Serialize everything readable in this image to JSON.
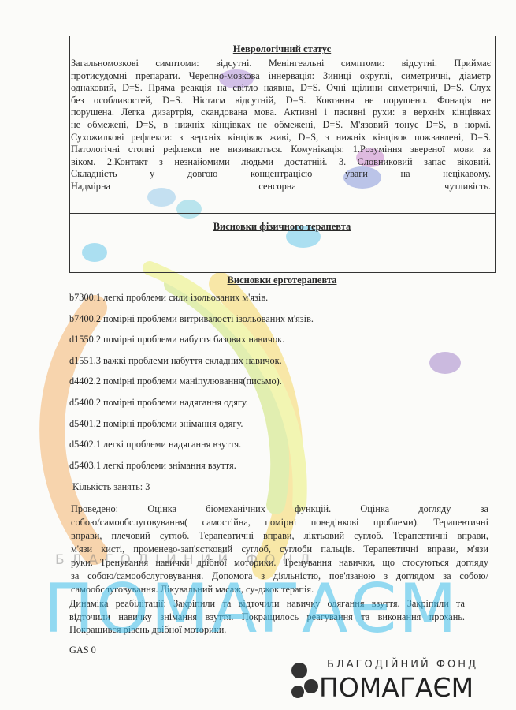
{
  "neuro": {
    "title": "Неврологічний статус",
    "lines": [
      "Загальномозкові симптоми: відсутні. Менінгеальні симптоми: відсутні. Приймає",
      "протисудомні препарати. Черепно-мозкова іннервація: Зиниці округлі, симетричні, діаметр",
      "однаковий, D=S. Пряма реакція на світло наявна, D=S. Очні щілини симетричні, D=S. Слух",
      "без особливостей, D=S. Ністагм відсутній, D=S. Ковтання не порушено. Фонація не",
      "порушена. Легка дизартрія, скандована мова. Активні і пасивні рухи: в верхніх кінцівках",
      "не обмежені, D=S, в нижніх кінцівках не обмежені, D=S. М'язовий тонус D=S, в нормі.",
      "Сухожилкові рефлекси: з верхніх кінцівок живі, D=S, з нижніх кінцівок пожвавлені, D=S.",
      "Патологічні стопні рефлекси не визиваються. Комунікація: 1.Розуміння звереної мови за",
      "віком. 2.Контакт з незнайомими людьми достатній. 3. Словниковий запас віковий.",
      "Складність у довгою концентрацією уваги на нецікавому.",
      "Надмірна сенсорна чутливість."
    ]
  },
  "physio": {
    "title": "Висновки фізичного терапевта"
  },
  "ergo": {
    "title": "Висновки ерготерапевта",
    "items": [
      "b7300.1 легкі проблеми сили ізольованих м'язів.",
      "b7400.2 помірні проблеми витривалості ізольованих м'язів.",
      "d1550.2 помірні проблеми набуття базових навичок.",
      "d1551.3 важкі проблеми набуття складних навичок.",
      "d4402.2 помірні проблеми маніпулювання(письмо).",
      "d5400.2 помірні проблеми надягання одягу.",
      "d5401.2 помірні проблеми знімання одягу.",
      "d5402.1 легкі проблеми надягання взуття.",
      "d5403.1 легкі проблеми знімання взуття."
    ],
    "sessions": "Кількість занять: 3",
    "performed": [
      "Проведено: Оцінка біомеханічних функцій. Оцінка догляду за",
      "собою/самообслуговування( самостійна, помірні поведінкові проблеми). Терапевтичні",
      "вправи, плечовий суглоб. Терапевтичні вправи, ліктьовий суглоб. Терапевтичні вправи,",
      "м'язи кисті, променево-зап'ястковий суглоб, суглоби пальців. Терапевтичні вправи, м'язи",
      "руки. Тренування навички дрібної моторики. Тренування навички, що стосуються догляду",
      "за собою/самообслуговування. Допомога з діяльністю, пов'язаною з доглядом за собою/",
      "самообслуговування. Лікувальний масаж, су-джок терапія."
    ],
    "dynamics": [
      "Динаміка реабілітації: Закріпили та відточили навичку одягання взуття. Закріпили та",
      "відточили навичку знімання взуття. Покращилось реагування та виконання прохань.",
      "Покращився рівень дрібної моторики."
    ],
    "gas": "GAS 0"
  },
  "watermark": {
    "foundation": "БЛАГОДІЙНИЙ ФОНД",
    "name": "ПОМАГАЄМ"
  }
}
